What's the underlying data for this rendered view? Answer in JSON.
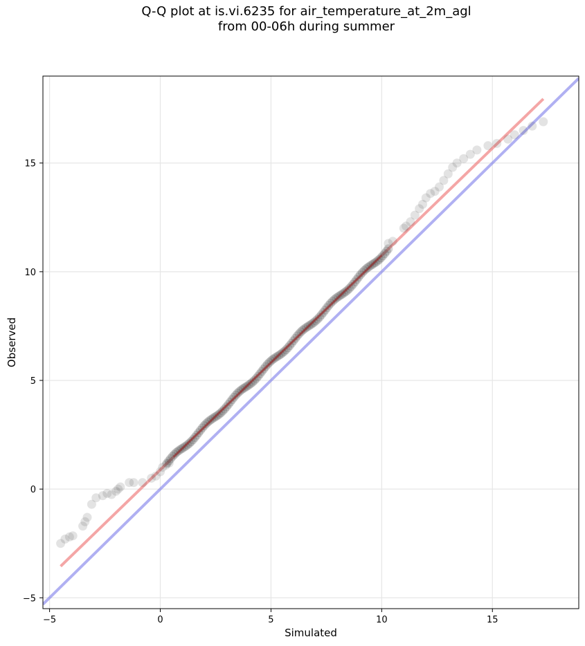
{
  "title": {
    "line1": "Q-Q plot at is.vi.6235 for air_temperature_at_2m_agl",
    "line2": "from 00-06h during summer"
  },
  "colors": {
    "points": "#3a3a3a",
    "fit_line": "#f08080",
    "identity_line": "#7b7bea",
    "grid": "#e6e6e6",
    "trend_overlay": "#a01010"
  },
  "chart_data": {
    "type": "scatter",
    "title": "Q-Q plot at is.vi.6235 for air_temperature_at_2m_agl from 00-06h during summer",
    "xlabel": "Simulated",
    "ylabel": "Observed",
    "xlim": [
      -5.3,
      18.9
    ],
    "ylim": [
      -5.5,
      19.0
    ],
    "xticks": [
      -5,
      0,
      5,
      10,
      15
    ],
    "yticks": [
      -5,
      0,
      5,
      10,
      15
    ],
    "xtick_labels": [
      "−5",
      "0",
      "5",
      "10",
      "15"
    ],
    "ytick_labels": [
      "−5",
      "0",
      "5",
      "10",
      "15"
    ],
    "grid": true,
    "fit_line": {
      "x": [
        -4.5,
        17.3
      ],
      "y": [
        -3.55,
        17.95
      ]
    },
    "identity_line": {
      "x": [
        -5.3,
        18.9
      ],
      "y": [
        -5.3,
        18.9
      ]
    },
    "tail_points": {
      "x": [
        -4.5,
        -4.3,
        -4.1,
        -3.95,
        -3.5,
        -3.4,
        -3.3,
        -3.1,
        -2.9,
        -2.6,
        -2.4,
        -2.2,
        -2.0,
        -1.9,
        -1.8,
        -1.4,
        -1.2,
        -0.8,
        -0.4,
        -0.2,
        0.0,
        0.1,
        0.25,
        0.4,
        10.3,
        10.5,
        11.0,
        11.1,
        11.3,
        11.5,
        11.7,
        11.85,
        12.0,
        12.2,
        12.4,
        12.6,
        12.8,
        13.0,
        13.2,
        13.4,
        13.7,
        14.0,
        14.3,
        14.8,
        15.2,
        15.7,
        16.0,
        16.4,
        16.8,
        17.3
      ],
      "y": [
        -2.5,
        -2.3,
        -2.2,
        -2.15,
        -1.7,
        -1.5,
        -1.3,
        -0.7,
        -0.4,
        -0.3,
        -0.2,
        -0.25,
        -0.1,
        0.0,
        0.1,
        0.3,
        0.3,
        0.3,
        0.5,
        0.6,
        0.8,
        1.0,
        1.1,
        1.2,
        11.3,
        11.4,
        12.0,
        12.1,
        12.3,
        12.6,
        12.9,
        13.1,
        13.4,
        13.6,
        13.7,
        13.9,
        14.2,
        14.5,
        14.8,
        15.0,
        15.2,
        15.4,
        15.6,
        15.8,
        15.9,
        16.1,
        16.3,
        16.5,
        16.7,
        16.9
      ]
    },
    "body_points": {
      "x_start": 0.3,
      "x_end": 10.3,
      "count": 120,
      "slope": 0.9862,
      "intercept": 0.89
    }
  }
}
